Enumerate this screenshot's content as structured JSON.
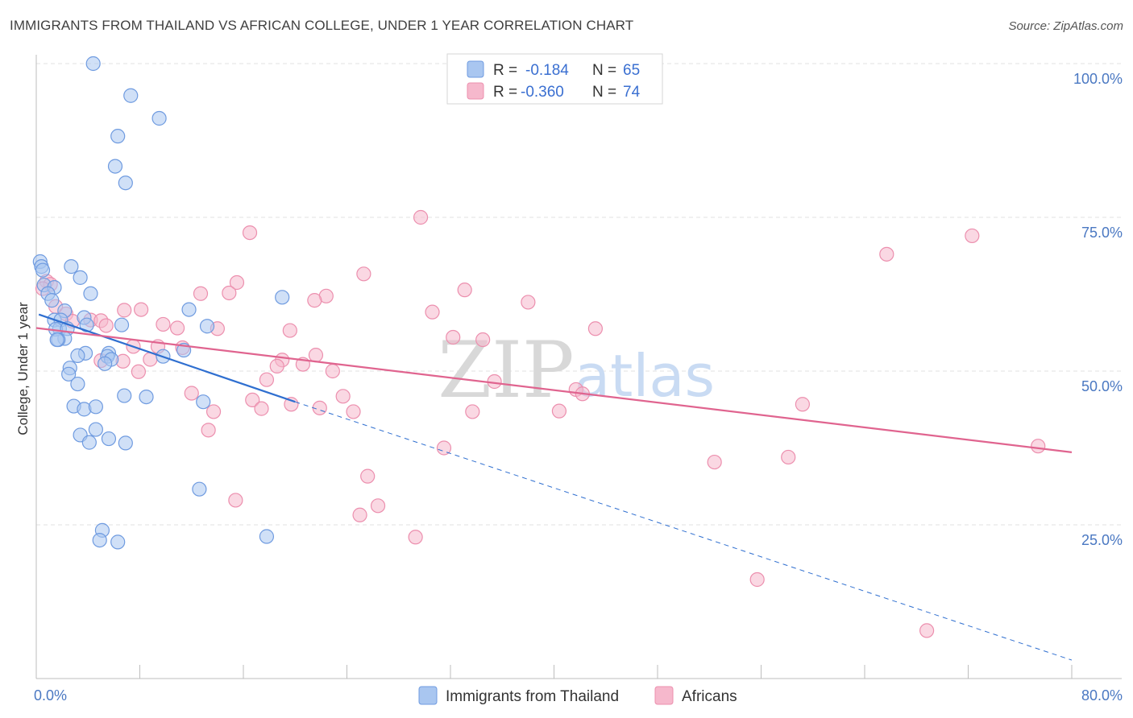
{
  "title": "IMMIGRANTS FROM THAILAND VS AFRICAN COLLEGE, UNDER 1 YEAR CORRELATION CHART",
  "source": "Source: ZipAtlas.com",
  "watermark": {
    "zip": "ZIP",
    "atlas": "atlas"
  },
  "colors": {
    "blue_fill": "#a9c6f0",
    "blue_stroke": "#6f9be0",
    "blue_line": "#2f6fd0",
    "pink_fill": "#f6b8cc",
    "pink_stroke": "#ec8fae",
    "pink_line": "#e0648f",
    "grid": "#e2e2e2",
    "tick_label": "#4a78c2"
  },
  "chart_data": {
    "type": "scatter",
    "xlabel": "",
    "ylabel": "College, Under 1 year",
    "xlim": [
      0,
      80
    ],
    "ylim": [
      0,
      100
    ],
    "x_tick_labels": [
      {
        "value": 0,
        "label": "0.0%"
      },
      {
        "value": 80,
        "label": "80.0%"
      }
    ],
    "y_tick_labels": [
      {
        "value": 25,
        "label": "25.0%"
      },
      {
        "value": 50,
        "label": "50.0%"
      },
      {
        "value": 75,
        "label": "75.0%"
      },
      {
        "value": 100,
        "label": "100.0%"
      }
    ],
    "legend_stats": [
      {
        "r_label": "R =",
        "r": "-0.184",
        "n_label": "N =",
        "n": "65"
      },
      {
        "r_label": "R =",
        "r": "-0.360",
        "n_label": "N =",
        "n": "74"
      }
    ],
    "series": [
      {
        "name": "Immigrants from Thailand",
        "color": "blue",
        "trend": {
          "x0": 0.2,
          "y0": 59.2,
          "x1": 20.0,
          "y1": 45.0,
          "dash_x1": 80.0,
          "dash_y1": 3.0
        },
        "points": [
          [
            4.4,
            100.0
          ],
          [
            7.3,
            94.8
          ],
          [
            9.5,
            91.1
          ],
          [
            6.3,
            88.2
          ],
          [
            6.1,
            83.3
          ],
          [
            6.9,
            80.6
          ],
          [
            0.3,
            67.8
          ],
          [
            0.4,
            67.0
          ],
          [
            2.7,
            67.0
          ],
          [
            0.5,
            66.4
          ],
          [
            0.6,
            64.0
          ],
          [
            3.4,
            65.2
          ],
          [
            1.4,
            63.6
          ],
          [
            0.9,
            62.6
          ],
          [
            4.2,
            62.6
          ],
          [
            19.0,
            62.0
          ],
          [
            1.2,
            61.5
          ],
          [
            11.8,
            60.0
          ],
          [
            2.2,
            59.8
          ],
          [
            1.4,
            58.3
          ],
          [
            1.9,
            58.3
          ],
          [
            3.7,
            58.7
          ],
          [
            3.9,
            57.5
          ],
          [
            6.6,
            57.5
          ],
          [
            13.2,
            57.3
          ],
          [
            1.8,
            56.9
          ],
          [
            1.5,
            56.8
          ],
          [
            2.4,
            56.9
          ],
          [
            2.2,
            55.3
          ],
          [
            1.7,
            55.1
          ],
          [
            1.6,
            55.1
          ],
          [
            11.4,
            53.4
          ],
          [
            5.6,
            52.9
          ],
          [
            3.8,
            52.9
          ],
          [
            3.2,
            52.5
          ],
          [
            5.5,
            52.4
          ],
          [
            5.8,
            51.9
          ],
          [
            5.3,
            51.2
          ],
          [
            9.8,
            52.4
          ],
          [
            2.6,
            50.5
          ],
          [
            2.5,
            49.5
          ],
          [
            3.2,
            47.9
          ],
          [
            6.8,
            46.0
          ],
          [
            8.5,
            45.8
          ],
          [
            12.9,
            45.0
          ],
          [
            2.9,
            44.3
          ],
          [
            3.7,
            43.8
          ],
          [
            4.6,
            44.2
          ],
          [
            4.6,
            40.5
          ],
          [
            3.4,
            39.6
          ],
          [
            5.6,
            39.0
          ],
          [
            4.1,
            38.4
          ],
          [
            6.9,
            38.3
          ],
          [
            12.6,
            30.8
          ],
          [
            17.8,
            23.1
          ],
          [
            5.1,
            24.1
          ],
          [
            4.9,
            22.5
          ],
          [
            6.3,
            22.2
          ]
        ]
      },
      {
        "name": "Africans",
        "color": "pink",
        "trend": {
          "x0": 0.0,
          "y0": 57.0,
          "x1": 80.0,
          "y1": 36.8
        },
        "points": [
          [
            29.7,
            75.0
          ],
          [
            16.5,
            72.5
          ],
          [
            72.3,
            72.0
          ],
          [
            65.7,
            69.0
          ],
          [
            25.3,
            65.8
          ],
          [
            15.5,
            64.4
          ],
          [
            0.8,
            64.6
          ],
          [
            1.1,
            64.1
          ],
          [
            0.5,
            63.4
          ],
          [
            33.1,
            63.2
          ],
          [
            14.9,
            62.7
          ],
          [
            12.7,
            62.6
          ],
          [
            22.4,
            62.2
          ],
          [
            21.5,
            61.5
          ],
          [
            38.0,
            61.2
          ],
          [
            1.5,
            60.5
          ],
          [
            8.1,
            60.0
          ],
          [
            6.8,
            59.9
          ],
          [
            30.6,
            59.6
          ],
          [
            2.3,
            59.3
          ],
          [
            4.2,
            58.3
          ],
          [
            5.0,
            58.2
          ],
          [
            2.8,
            58.1
          ],
          [
            9.8,
            57.6
          ],
          [
            5.4,
            57.4
          ],
          [
            10.9,
            57.0
          ],
          [
            14.0,
            56.9
          ],
          [
            19.6,
            56.6
          ],
          [
            43.2,
            56.9
          ],
          [
            32.2,
            55.5
          ],
          [
            7.5,
            54.0
          ],
          [
            9.4,
            54.0
          ],
          [
            11.3,
            53.8
          ],
          [
            34.5,
            55.1
          ],
          [
            21.6,
            52.6
          ],
          [
            8.8,
            51.9
          ],
          [
            19.0,
            51.8
          ],
          [
            5.0,
            51.7
          ],
          [
            6.7,
            51.6
          ],
          [
            20.6,
            51.1
          ],
          [
            18.6,
            50.8
          ],
          [
            22.9,
            50.0
          ],
          [
            7.9,
            49.9
          ],
          [
            17.8,
            48.6
          ],
          [
            35.4,
            48.3
          ],
          [
            41.7,
            47.0
          ],
          [
            42.2,
            46.3
          ],
          [
            23.7,
            45.9
          ],
          [
            16.7,
            45.3
          ],
          [
            19.7,
            44.6
          ],
          [
            59.2,
            44.6
          ],
          [
            12.0,
            46.4
          ],
          [
            21.9,
            44.0
          ],
          [
            17.4,
            43.9
          ],
          [
            13.7,
            43.4
          ],
          [
            24.5,
            43.4
          ],
          [
            33.7,
            43.4
          ],
          [
            40.4,
            43.5
          ],
          [
            13.3,
            40.4
          ],
          [
            31.5,
            37.5
          ],
          [
            77.4,
            37.8
          ],
          [
            52.4,
            35.2
          ],
          [
            58.1,
            36.0
          ],
          [
            25.6,
            32.9
          ],
          [
            15.4,
            29.0
          ],
          [
            26.4,
            28.1
          ],
          [
            25.0,
            26.6
          ],
          [
            29.3,
            23.0
          ],
          [
            55.7,
            16.1
          ],
          [
            68.8,
            7.8
          ]
        ]
      }
    ]
  }
}
